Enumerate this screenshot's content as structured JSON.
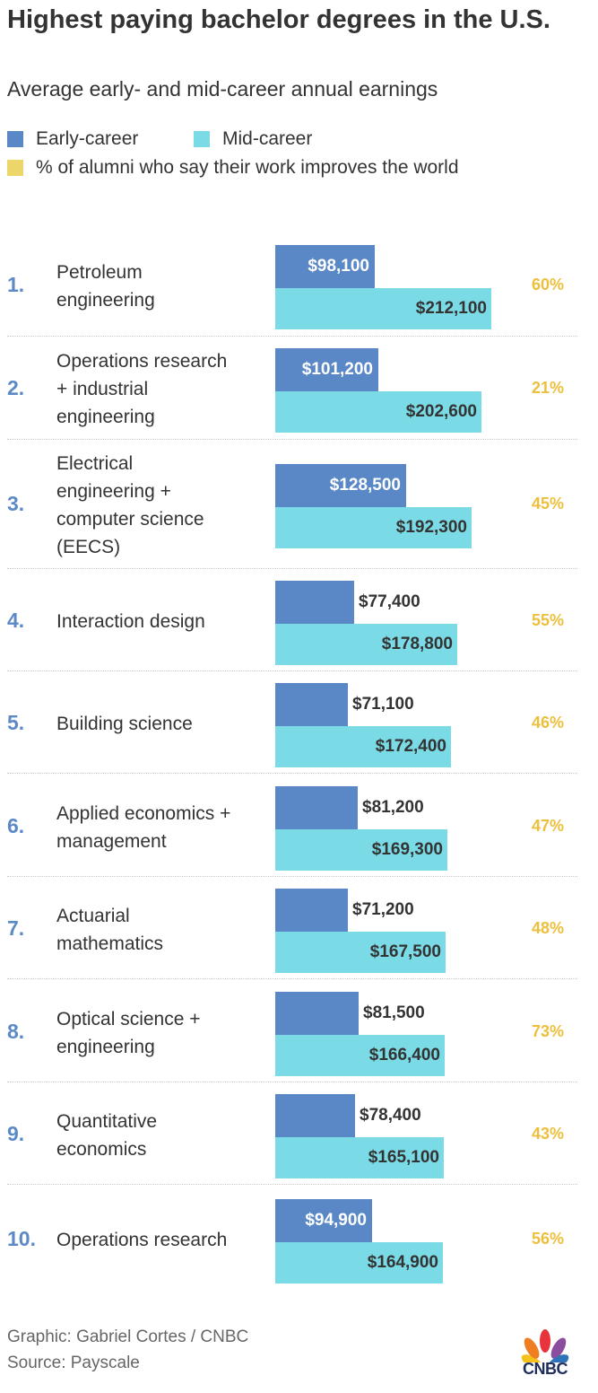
{
  "chart_data": {
    "type": "bar",
    "title": "Highest paying bachelor degrees in the U.S.",
    "subtitle": "Average early- and mid-career annual earnings",
    "legend": [
      {
        "label": "Early-career",
        "color": "#5a88c6"
      },
      {
        "label": "Mid-career",
        "color": "#7adbe6"
      },
      {
        "label": "% of alumni who say their work improves the world",
        "color": "#ecd66a"
      }
    ],
    "legend_position": "top-left",
    "orientation": "horizontal",
    "grid": false,
    "xlim": [
      0,
      212100
    ],
    "rows": [
      {
        "rank": "1.",
        "name": "Petroleum engineering",
        "lines": [
          "Petroleum",
          "engineering"
        ],
        "early": 98100,
        "early_label": "$98,100",
        "mid": 212100,
        "mid_label": "$212,100",
        "pct": 60,
        "pct_label": "60%"
      },
      {
        "rank": "2.",
        "name": "Operations research + industrial engineering",
        "lines": [
          "Operations research",
          "+ industrial",
          "engineering"
        ],
        "early": 101200,
        "early_label": "$101,200",
        "mid": 202600,
        "mid_label": "$202,600",
        "pct": 21,
        "pct_label": "21%"
      },
      {
        "rank": "3.",
        "name": "Electrical engineering + computer science (EECS)",
        "lines": [
          "Electrical",
          "engineering +",
          "computer science",
          "(EECS)"
        ],
        "early": 128500,
        "early_label": "$128,500",
        "mid": 192300,
        "mid_label": "$192,300",
        "pct": 45,
        "pct_label": "45%"
      },
      {
        "rank": "4.",
        "name": "Interaction design",
        "lines": [
          "Interaction design"
        ],
        "early": 77400,
        "early_label": "$77,400",
        "mid": 178800,
        "mid_label": "$178,800",
        "pct": 55,
        "pct_label": "55%"
      },
      {
        "rank": "5.",
        "name": "Building science",
        "lines": [
          "Building science"
        ],
        "early": 71100,
        "early_label": "$71,100",
        "mid": 172400,
        "mid_label": "$172,400",
        "pct": 46,
        "pct_label": "46%"
      },
      {
        "rank": "6.",
        "name": "Applied economics + management",
        "lines": [
          "Applied economics +",
          "management"
        ],
        "early": 81200,
        "early_label": "$81,200",
        "mid": 169300,
        "mid_label": "$169,300",
        "pct": 47,
        "pct_label": "47%"
      },
      {
        "rank": "7.",
        "name": "Actuarial mathematics",
        "lines": [
          "Actuarial",
          "mathematics"
        ],
        "early": 71200,
        "early_label": "$71,200",
        "mid": 167500,
        "mid_label": "$167,500",
        "pct": 48,
        "pct_label": "48%"
      },
      {
        "rank": "8.",
        "name": "Optical science + engineering",
        "lines": [
          "Optical science +",
          "engineering"
        ],
        "early": 81500,
        "early_label": "$81,500",
        "mid": 166400,
        "mid_label": "$166,400",
        "pct": 73,
        "pct_label": "73%"
      },
      {
        "rank": "9.",
        "name": "Quantitative economics",
        "lines": [
          "Quantitative",
          "economics"
        ],
        "early": 78400,
        "early_label": "$78,400",
        "mid": 165100,
        "mid_label": "$165,100",
        "pct": 43,
        "pct_label": "43%"
      },
      {
        "rank": "10.",
        "name": "Operations research",
        "lines": [
          "Operations research"
        ],
        "early": 94900,
        "early_label": "$94,900",
        "mid": 164900,
        "mid_label": "$164,900",
        "pct": 56,
        "pct_label": "56%"
      }
    ]
  },
  "footer": {
    "credit": "Graphic: Gabriel Cortes / CNBC",
    "source": "Source: Payscale"
  },
  "logo": {
    "text": "CNBC",
    "icon": "cnbc-peacock-icon"
  }
}
